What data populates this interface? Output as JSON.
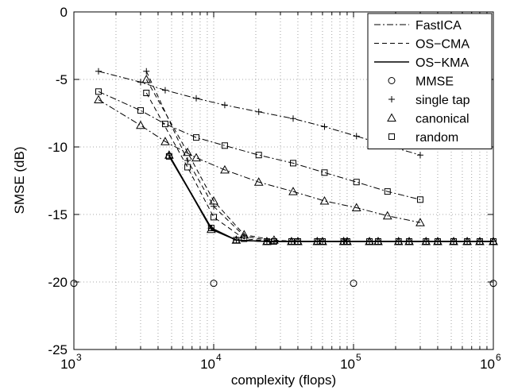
{
  "chart_data": {
    "type": "line",
    "xscale": "log",
    "xlim": [
      1000,
      1000000
    ],
    "ylim": [
      -25,
      0
    ],
    "xlabel": "complexity (flops)",
    "ylabel": "SMSE (dB)",
    "grid": true,
    "legend_position": "top-right",
    "x_ticks": [
      {
        "base": "10",
        "exp": "3",
        "value": 1000
      },
      {
        "base": "10",
        "exp": "4",
        "value": 10000
      },
      {
        "base": "10",
        "exp": "5",
        "value": 100000
      },
      {
        "base": "10",
        "exp": "6",
        "value": 1000000
      }
    ],
    "y_ticks": [
      "0",
      "-5",
      "-10",
      "-15",
      "-20",
      "-25"
    ],
    "y_tick_values": [
      0,
      -5,
      -10,
      -15,
      -20,
      -25
    ],
    "legend": {
      "lines": [
        {
          "label": "FastICA",
          "style": "dashdot"
        },
        {
          "label": "OS−CMA",
          "style": "dashed"
        },
        {
          "label": "OS−KMA",
          "style": "solid"
        }
      ],
      "markers": [
        {
          "label": "MMSE",
          "marker": "circle"
        },
        {
          "label": "single tap",
          "marker": "plus"
        },
        {
          "label": "canonical",
          "marker": "triangle"
        },
        {
          "label": "random",
          "marker": "square"
        }
      ]
    },
    "series": [
      {
        "style": "dashdot",
        "marker": "plus",
        "x": [
          1500,
          3000,
          4500,
          7500,
          12000,
          21000,
          37000,
          62000,
          105000,
          175000,
          300000
        ],
        "y": [
          -4.4,
          -5.2,
          -5.8,
          -6.4,
          -6.9,
          -7.4,
          -7.9,
          -8.5,
          -9.2,
          -9.9,
          -10.6
        ]
      },
      {
        "style": "dashdot",
        "marker": "triangle",
        "x": [
          1500,
          3000,
          4500,
          7500,
          12000,
          21000,
          37000,
          62000,
          105000,
          175000,
          300000
        ],
        "y": [
          -6.5,
          -8.4,
          -9.6,
          -10.8,
          -11.7,
          -12.6,
          -13.3,
          -14.0,
          -14.5,
          -15.1,
          -15.6
        ]
      },
      {
        "style": "dashdot",
        "marker": "square",
        "x": [
          1500,
          3000,
          4500,
          7500,
          12000,
          21000,
          37000,
          62000,
          105000,
          175000,
          300000
        ],
        "y": [
          -5.9,
          -7.3,
          -8.3,
          -9.3,
          -9.9,
          -10.6,
          -11.2,
          -11.9,
          -12.6,
          -13.3,
          -13.9
        ]
      },
      {
        "style": "dashed",
        "marker": "plus",
        "x": [
          3300,
          6500,
          10000,
          16500,
          27000,
          40000,
          60000,
          90000,
          150000,
          250000,
          400000,
          650000,
          1000000
        ],
        "y": [
          -4.4,
          -11.0,
          -14.4,
          -16.6,
          -17.0,
          -17.0,
          -17.0,
          -17.0,
          -17.0,
          -17.0,
          -17.0,
          -17.0,
          -17.0
        ]
      },
      {
        "style": "dashed",
        "marker": "triangle",
        "x": [
          3300,
          6500,
          10000,
          16500,
          27000,
          40000,
          60000,
          90000,
          150000,
          250000,
          400000,
          650000,
          1000000
        ],
        "y": [
          -5.0,
          -10.4,
          -14.0,
          -16.5,
          -16.9,
          -17.0,
          -17.0,
          -17.0,
          -17.0,
          -17.0,
          -17.0,
          -17.0,
          -17.0
        ]
      },
      {
        "style": "dashed",
        "marker": "square",
        "x": [
          3300,
          6500,
          10000,
          16500,
          27000,
          40000,
          60000,
          90000,
          150000,
          250000,
          400000,
          650000,
          1000000
        ],
        "y": [
          -6.0,
          -11.5,
          -15.2,
          -16.8,
          -17.0,
          -17.0,
          -17.0,
          -17.0,
          -17.0,
          -17.0,
          -17.0,
          -17.0,
          -17.0
        ]
      },
      {
        "style": "solid",
        "marker": "plus",
        "x": [
          4800,
          9600,
          14500,
          24000,
          36000,
          55000,
          85000,
          130000,
          210000,
          330000,
          520000,
          800000,
          1000000
        ],
        "y": [
          -10.6,
          -16.0,
          -16.9,
          -17.0,
          -17.0,
          -17.0,
          -17.0,
          -17.0,
          -17.0,
          -17.0,
          -17.0,
          -17.0,
          -17.0
        ]
      },
      {
        "style": "solid",
        "marker": "triangle",
        "x": [
          4800,
          9600,
          14500,
          24000,
          36000,
          55000,
          85000,
          130000,
          210000,
          330000,
          520000,
          800000,
          1000000
        ],
        "y": [
          -10.6,
          -16.1,
          -16.9,
          -17.0,
          -17.0,
          -17.0,
          -17.0,
          -17.0,
          -17.0,
          -17.0,
          -17.0,
          -17.0,
          -17.0
        ]
      },
      {
        "style": "solid",
        "marker": "square",
        "x": [
          4800,
          9600,
          14500,
          24000,
          36000,
          55000,
          85000,
          130000,
          210000,
          330000,
          520000,
          800000,
          1000000
        ],
        "y": [
          -10.7,
          -16.0,
          -16.9,
          -17.0,
          -17.0,
          -17.0,
          -17.0,
          -17.0,
          -17.0,
          -17.0,
          -17.0,
          -17.0,
          -17.0
        ]
      },
      {
        "style": "none",
        "marker": "circle",
        "x": [
          1000,
          10000,
          100000,
          1000000
        ],
        "y": [
          -20.1,
          -20.1,
          -20.1,
          -20.1
        ]
      }
    ]
  }
}
